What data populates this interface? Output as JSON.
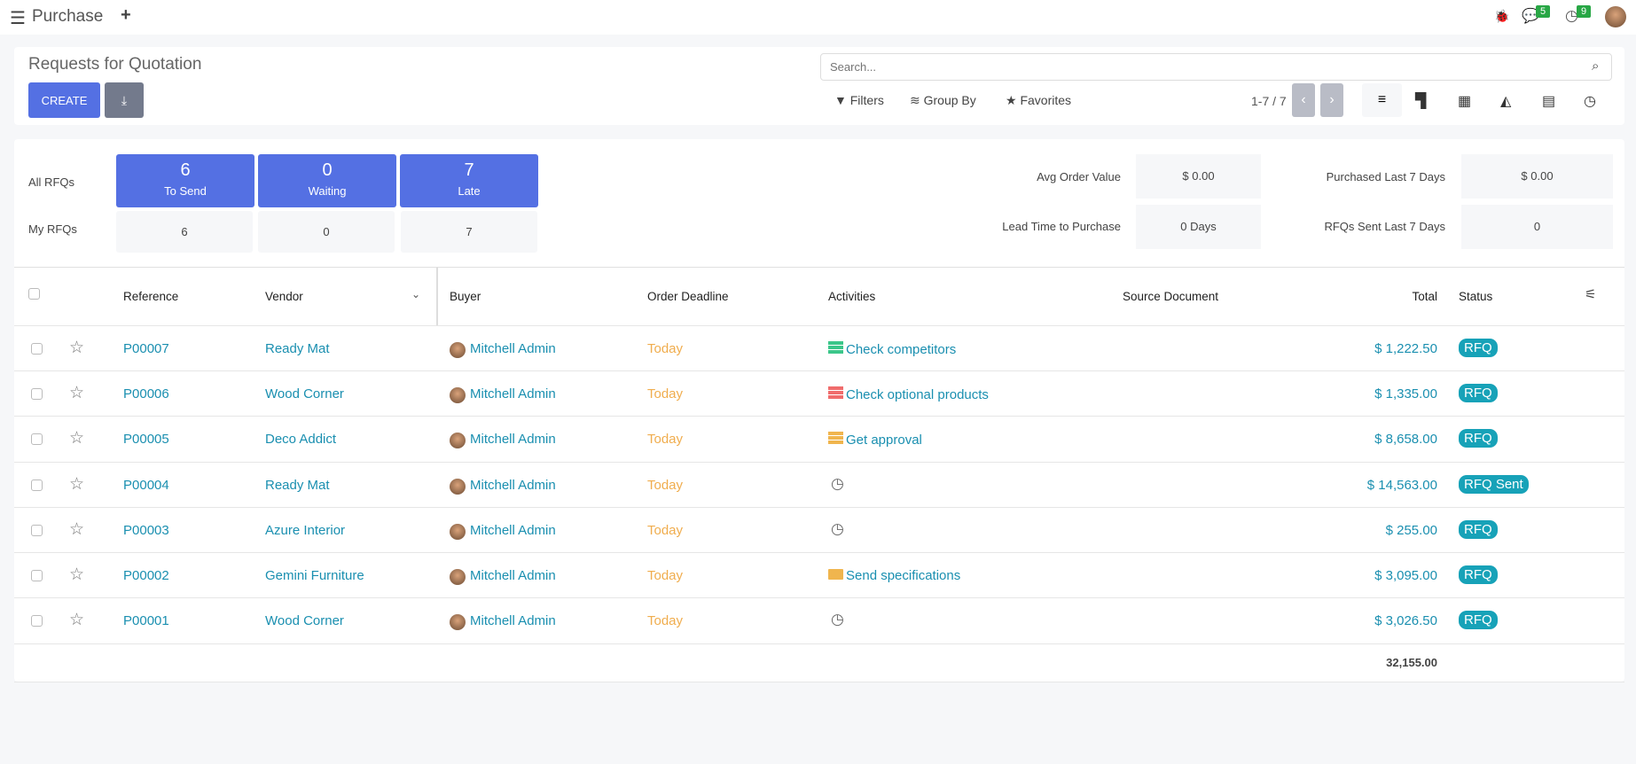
{
  "app": {
    "title": "Purchase",
    "bug_icon": "bug-icon",
    "messages_count": "5",
    "activities_count": "9"
  },
  "control": {
    "title": "Requests for Quotation",
    "create_label": "CREATE",
    "search_placeholder": "Search...",
    "filters": "Filters",
    "group_by": "Group By",
    "favorites": "Favorites",
    "pager": "1-7 / 7"
  },
  "dashboard": {
    "all_label": "All RFQs",
    "my_label": "My RFQs",
    "tiles": [
      {
        "value": "6",
        "label": "To Send",
        "my": "6"
      },
      {
        "value": "0",
        "label": "Waiting",
        "my": "0"
      },
      {
        "value": "7",
        "label": "Late",
        "my": "7"
      }
    ],
    "stats": [
      {
        "label": "Avg Order Value",
        "value": "$ 0.00"
      },
      {
        "label": "Purchased Last 7 Days",
        "value": "$ 0.00"
      },
      {
        "label": "Lead Time to Purchase",
        "value": "0 Days"
      },
      {
        "label": "RFQs Sent Last 7 Days",
        "value": "0"
      }
    ]
  },
  "table": {
    "headers": {
      "reference": "Reference",
      "vendor": "Vendor",
      "buyer": "Buyer",
      "deadline": "Order Deadline",
      "activities": "Activities",
      "source": "Source Document",
      "total": "Total",
      "status": "Status"
    },
    "rows": [
      {
        "ref": "P00007",
        "vendor": "Ready Mat",
        "buyer": "Mitchell Admin",
        "deadline": "Today",
        "activity": "Check competitors",
        "activity_color": "#3cc68a",
        "total": "$ 1,222.50",
        "status": "RFQ"
      },
      {
        "ref": "P00006",
        "vendor": "Wood Corner",
        "buyer": "Mitchell Admin",
        "deadline": "Today",
        "activity": "Check optional products",
        "activity_color": "#f06c6c",
        "total": "$ 1,335.00",
        "status": "RFQ"
      },
      {
        "ref": "P00005",
        "vendor": "Deco Addict",
        "buyer": "Mitchell Admin",
        "deadline": "Today",
        "activity": "Get approval",
        "activity_color": "#f0b54e",
        "total": "$ 8,658.00",
        "status": "RFQ"
      },
      {
        "ref": "P00004",
        "vendor": "Ready Mat",
        "buyer": "Mitchell Admin",
        "deadline": "Today",
        "activity": "",
        "total": "$ 14,563.00",
        "status": "RFQ Sent"
      },
      {
        "ref": "P00003",
        "vendor": "Azure Interior",
        "buyer": "Mitchell Admin",
        "deadline": "Today",
        "activity": "",
        "total": "$ 255.00",
        "status": "RFQ"
      },
      {
        "ref": "P00002",
        "vendor": "Gemini Furniture",
        "buyer": "Mitchell Admin",
        "deadline": "Today",
        "activity": "Send specifications",
        "activity_color": "#f0b54e",
        "activity_icon": "envelope-icon",
        "total": "$ 3,095.00",
        "status": "RFQ"
      },
      {
        "ref": "P00001",
        "vendor": "Wood Corner",
        "buyer": "Mitchell Admin",
        "deadline": "Today",
        "activity": "",
        "total": "$ 3,026.50",
        "status": "RFQ"
      }
    ],
    "sum_total": "32,155.00"
  }
}
